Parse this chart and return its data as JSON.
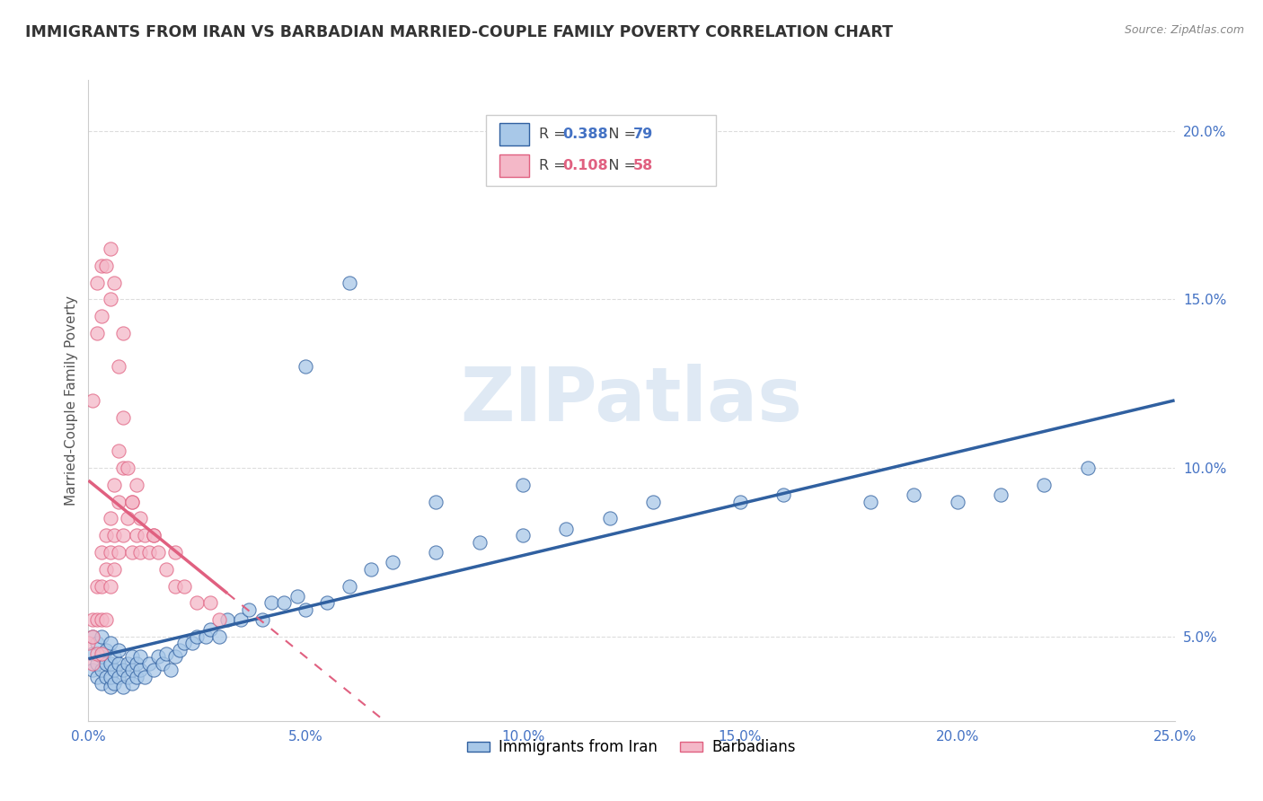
{
  "title": "IMMIGRANTS FROM IRAN VS BARBADIAN MARRIED-COUPLE FAMILY POVERTY CORRELATION CHART",
  "source": "Source: ZipAtlas.com",
  "ylabel": "Married-Couple Family Poverty",
  "legend_label1": "Immigrants from Iran",
  "legend_label2": "Barbadians",
  "R1": 0.388,
  "N1": 79,
  "R2": 0.108,
  "N2": 58,
  "color1": "#a8c8e8",
  "color2": "#f4b8c8",
  "color1_line": "#3060a0",
  "color2_line": "#e06080",
  "xlim": [
    0.0,
    0.25
  ],
  "ylim": [
    0.025,
    0.215
  ],
  "xticks": [
    0.0,
    0.05,
    0.1,
    0.15,
    0.2,
    0.25
  ],
  "yticks_right": [
    0.05,
    0.1,
    0.15,
    0.2
  ],
  "watermark": "ZIPatlas",
  "iran_x": [
    0.001,
    0.001,
    0.001,
    0.002,
    0.002,
    0.002,
    0.003,
    0.003,
    0.003,
    0.003,
    0.004,
    0.004,
    0.004,
    0.005,
    0.005,
    0.005,
    0.005,
    0.006,
    0.006,
    0.006,
    0.007,
    0.007,
    0.007,
    0.008,
    0.008,
    0.009,
    0.009,
    0.01,
    0.01,
    0.01,
    0.011,
    0.011,
    0.012,
    0.012,
    0.013,
    0.014,
    0.015,
    0.016,
    0.017,
    0.018,
    0.019,
    0.02,
    0.021,
    0.022,
    0.024,
    0.025,
    0.027,
    0.028,
    0.03,
    0.032,
    0.035,
    0.037,
    0.04,
    0.042,
    0.045,
    0.048,
    0.05,
    0.055,
    0.06,
    0.065,
    0.07,
    0.08,
    0.09,
    0.1,
    0.11,
    0.12,
    0.13,
    0.15,
    0.16,
    0.18,
    0.19,
    0.2,
    0.21,
    0.22,
    0.23,
    0.05,
    0.06,
    0.08,
    0.1
  ],
  "iran_y": [
    0.04,
    0.045,
    0.05,
    0.038,
    0.042,
    0.048,
    0.036,
    0.04,
    0.044,
    0.05,
    0.038,
    0.042,
    0.046,
    0.035,
    0.038,
    0.042,
    0.048,
    0.036,
    0.04,
    0.044,
    0.038,
    0.042,
    0.046,
    0.035,
    0.04,
    0.038,
    0.042,
    0.036,
    0.04,
    0.044,
    0.038,
    0.042,
    0.04,
    0.044,
    0.038,
    0.042,
    0.04,
    0.044,
    0.042,
    0.045,
    0.04,
    0.044,
    0.046,
    0.048,
    0.048,
    0.05,
    0.05,
    0.052,
    0.05,
    0.055,
    0.055,
    0.058,
    0.055,
    0.06,
    0.06,
    0.062,
    0.058,
    0.06,
    0.065,
    0.07,
    0.072,
    0.075,
    0.078,
    0.08,
    0.082,
    0.085,
    0.09,
    0.09,
    0.092,
    0.09,
    0.092,
    0.09,
    0.092,
    0.095,
    0.1,
    0.13,
    0.155,
    0.09,
    0.095
  ],
  "barb_x": [
    0.0,
    0.001,
    0.001,
    0.001,
    0.002,
    0.002,
    0.002,
    0.003,
    0.003,
    0.003,
    0.003,
    0.004,
    0.004,
    0.004,
    0.005,
    0.005,
    0.005,
    0.006,
    0.006,
    0.006,
    0.007,
    0.007,
    0.007,
    0.008,
    0.008,
    0.008,
    0.009,
    0.009,
    0.01,
    0.01,
    0.011,
    0.011,
    0.012,
    0.013,
    0.014,
    0.015,
    0.016,
    0.018,
    0.02,
    0.022,
    0.025,
    0.028,
    0.03,
    0.001,
    0.002,
    0.002,
    0.003,
    0.003,
    0.004,
    0.005,
    0.005,
    0.006,
    0.007,
    0.008,
    0.01,
    0.012,
    0.015,
    0.02
  ],
  "barb_y": [
    0.048,
    0.042,
    0.05,
    0.055,
    0.045,
    0.055,
    0.065,
    0.045,
    0.055,
    0.065,
    0.075,
    0.055,
    0.07,
    0.08,
    0.065,
    0.075,
    0.085,
    0.07,
    0.08,
    0.095,
    0.075,
    0.09,
    0.105,
    0.08,
    0.1,
    0.115,
    0.085,
    0.1,
    0.075,
    0.09,
    0.08,
    0.095,
    0.075,
    0.08,
    0.075,
    0.08,
    0.075,
    0.07,
    0.065,
    0.065,
    0.06,
    0.06,
    0.055,
    0.12,
    0.14,
    0.155,
    0.145,
    0.16,
    0.16,
    0.15,
    0.165,
    0.155,
    0.13,
    0.14,
    0.09,
    0.085,
    0.08,
    0.075
  ]
}
